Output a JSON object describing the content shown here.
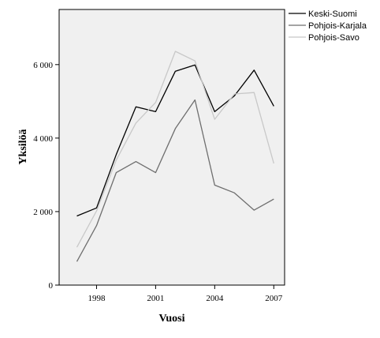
{
  "chart_data": {
    "type": "line",
    "title": "",
    "xlabel": "Vuosi",
    "ylabel": "Yksilöä",
    "x": [
      1997,
      1998,
      1999,
      2000,
      2001,
      2002,
      2003,
      2004,
      2005,
      2006,
      2007
    ],
    "xlim": [
      1996.1,
      2007.55
    ],
    "ylim": [
      0,
      7500
    ],
    "x_ticks": [
      1998,
      2001,
      2004,
      2007
    ],
    "y_ticks": [
      0,
      2000,
      4000,
      6000
    ],
    "y_tick_labels": [
      "0",
      "2 000",
      "4 000",
      "6 000"
    ],
    "grid": false,
    "legend_position": "top-right-outside",
    "series": [
      {
        "name": "Keski-Suomi",
        "color": "#000000",
        "values": [
          1880,
          2100,
          3550,
          4850,
          4720,
          5820,
          5990,
          4720,
          5150,
          5850,
          4870
        ]
      },
      {
        "name": "Pohjois-Karjala",
        "color": "#6e6e6e",
        "values": [
          640,
          1620,
          3060,
          3360,
          3060,
          4260,
          5040,
          2720,
          2510,
          2040,
          2340
        ]
      },
      {
        "name": "Pohjois-Savo",
        "color": "#c8c8c8",
        "values": [
          1030,
          2020,
          3400,
          4410,
          4970,
          6360,
          6100,
          4510,
          5200,
          5240,
          3310
        ]
      }
    ],
    "plot_background": "#f0f0f0"
  }
}
